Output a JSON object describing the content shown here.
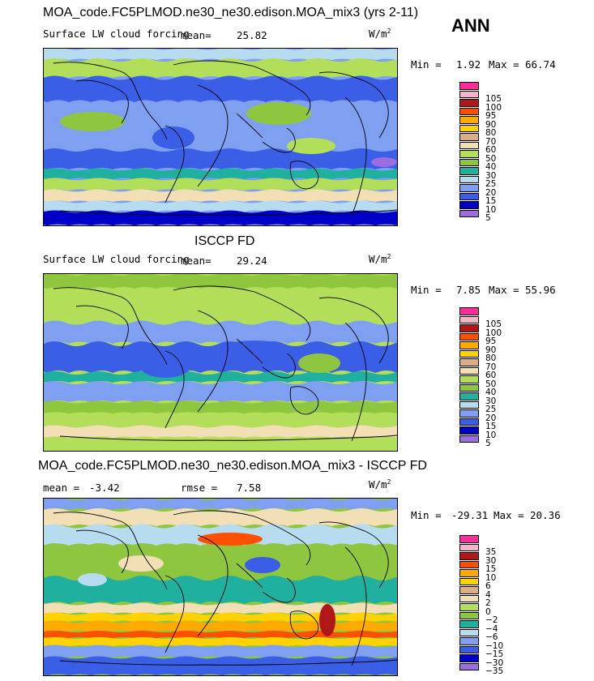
{
  "main_title": "MOA_code.FC5PLMOD.ne30_ne30.edison.MOA_mix3 (yrs 2-11)",
  "season": "ANN",
  "colors": {
    "full": [
      "#9a6ee0",
      "#0000c8",
      "#3a5ee6",
      "#7fa0f0",
      "#b8dcef",
      "#20b0a0",
      "#8ec63f",
      "#b2de5a",
      "#f2dfb6",
      "#dcae85",
      "#ffd200",
      "#ffaa00",
      "#ff5000",
      "#b01818",
      "#f5b4c8",
      "#ff2c9c"
    ],
    "diff": [
      "#9a6ee0",
      "#0000c8",
      "#3a5ee6",
      "#7fa0f0",
      "#b8dcef",
      "#20b0a0",
      "#8ec63f",
      "#b2de5a",
      "#f2dfb6",
      "#dcae85",
      "#ffd200",
      "#ffaa00",
      "#ff5000",
      "#b01818",
      "#f5b4c8",
      "#ff2c9c"
    ]
  },
  "chart_data": [
    {
      "type": "heatmap",
      "title": "MOA_code.FC5PLMOD.ne30_ne30.edison.MOA_mix3 (yrs 2-11)",
      "variable": "Surface LW cloud forcing",
      "units": "W/m2",
      "mean_label": "mean=",
      "mean": "25.82",
      "min_label": "Min =",
      "min": "1.92",
      "max_label": "Max =",
      "max": "66.74",
      "contour_levels": [
        "5",
        "10",
        "15",
        "20",
        "25",
        "30",
        "40",
        "50",
        "60",
        "70",
        "80",
        "90",
        "95",
        "100",
        "105"
      ]
    },
    {
      "type": "heatmap",
      "title": "ISCCP FD",
      "variable": "Surface LW cloud forcing",
      "units": "W/m2",
      "mean_label": "mean=",
      "mean": "29.24",
      "min_label": "Min =",
      "min": "7.85",
      "max_label": "Max =",
      "max": "55.96",
      "contour_levels": [
        "5",
        "10",
        "15",
        "20",
        "25",
        "30",
        "40",
        "50",
        "60",
        "70",
        "80",
        "90",
        "95",
        "100",
        "105"
      ]
    },
    {
      "type": "heatmap",
      "title": "MOA_code.FC5PLMOD.ne30_ne30.edison.MOA_mix3 - ISCCP FD",
      "variable": "",
      "units": "W/m2",
      "mean_label": "mean =",
      "mean": "-3.42",
      "rmse_label": "rmse =",
      "rmse": "7.58",
      "min_label": "Min =",
      "min": "-29.31",
      "max_label": "Max =",
      "max": "20.36",
      "contour_levels": [
        "-35",
        "-30",
        "-15",
        "-10",
        "-6",
        "-4",
        "-2",
        "0",
        "2",
        "4",
        "6",
        "10",
        "15",
        "30",
        "35"
      ]
    }
  ]
}
